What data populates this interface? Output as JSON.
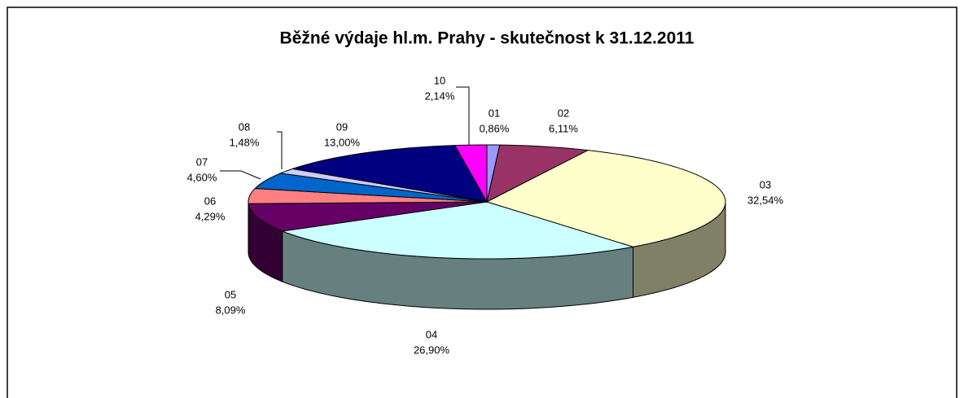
{
  "chart_data": {
    "type": "pie3d",
    "title": "Běžné výdaje hl.m. Prahy - skutečnost k 31.12.2011",
    "categories": [
      "01",
      "02",
      "03",
      "04",
      "05",
      "06",
      "07",
      "08",
      "09",
      "10"
    ],
    "values": [
      0.86,
      6.11,
      32.54,
      26.9,
      8.09,
      4.29,
      4.6,
      1.48,
      13.0,
      2.14
    ],
    "value_labels": [
      "0,86%",
      "6,11%",
      "32,54%",
      "26,90%",
      "8,09%",
      "4,29%",
      "4,60%",
      "1,48%",
      "13,00%",
      "2,14%"
    ],
    "colors": [
      "#9999ff",
      "#993366",
      "#ffffcc",
      "#ccffff",
      "#660066",
      "#ff8080",
      "#0066cc",
      "#ccccff",
      "#000080",
      "#ff00ff"
    ]
  }
}
